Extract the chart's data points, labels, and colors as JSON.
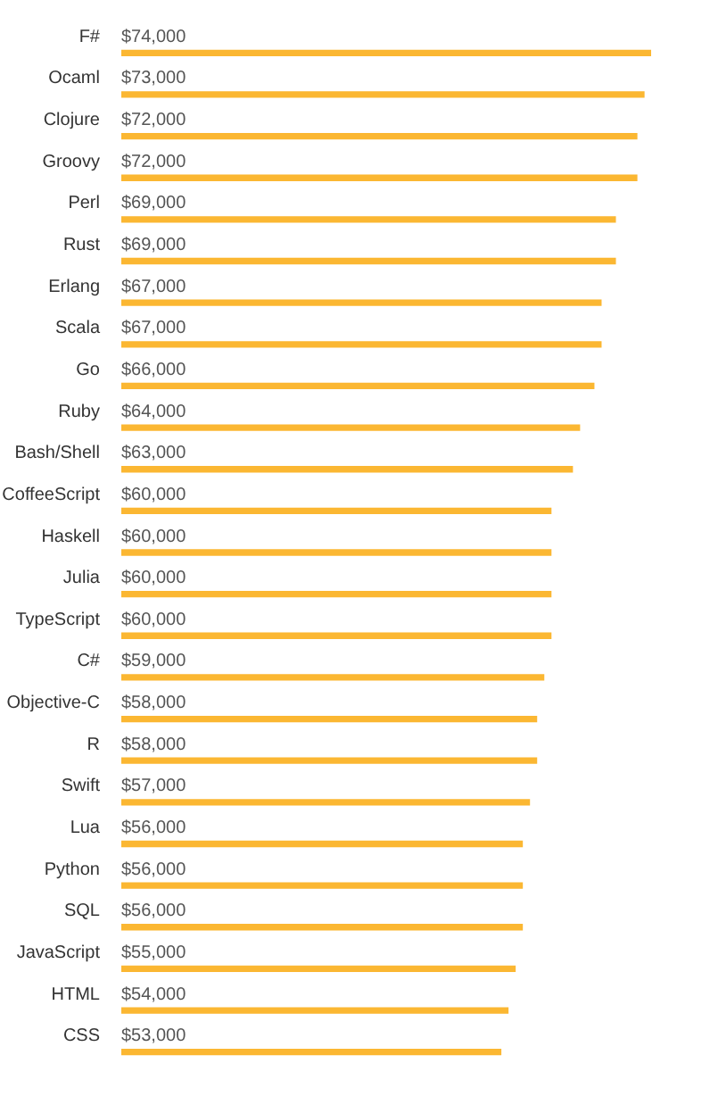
{
  "chart_data": {
    "type": "bar",
    "orientation": "horizontal",
    "color": "#fbb732",
    "categories": [
      "F#",
      "Ocaml",
      "Clojure",
      "Groovy",
      "Perl",
      "Rust",
      "Erlang",
      "Scala",
      "Go",
      "Ruby",
      "Bash/Shell",
      "CoffeeScript",
      "Haskell",
      "Julia",
      "TypeScript",
      "C#",
      "Objective-C",
      "R",
      "Swift",
      "Lua",
      "Python",
      "SQL",
      "JavaScript",
      "HTML",
      "CSS"
    ],
    "values": [
      74000,
      73000,
      72000,
      72000,
      69000,
      69000,
      67000,
      67000,
      66000,
      64000,
      63000,
      60000,
      60000,
      60000,
      60000,
      59000,
      58000,
      58000,
      57000,
      56000,
      56000,
      56000,
      55000,
      54000,
      53000
    ],
    "value_labels": [
      "$74,000",
      "$73,000",
      "$72,000",
      "$72,000",
      "$69,000",
      "$69,000",
      "$67,000",
      "$67,000",
      "$66,000",
      "$64,000",
      "$63,000",
      "$60,000",
      "$60,000",
      "$60,000",
      "$60,000",
      "$59,000",
      "$58,000",
      "$58,000",
      "$57,000",
      "$56,000",
      "$56,000",
      "$56,000",
      "$55,000",
      "$54,000",
      "$53,000"
    ],
    "grid": false,
    "legend": false
  }
}
